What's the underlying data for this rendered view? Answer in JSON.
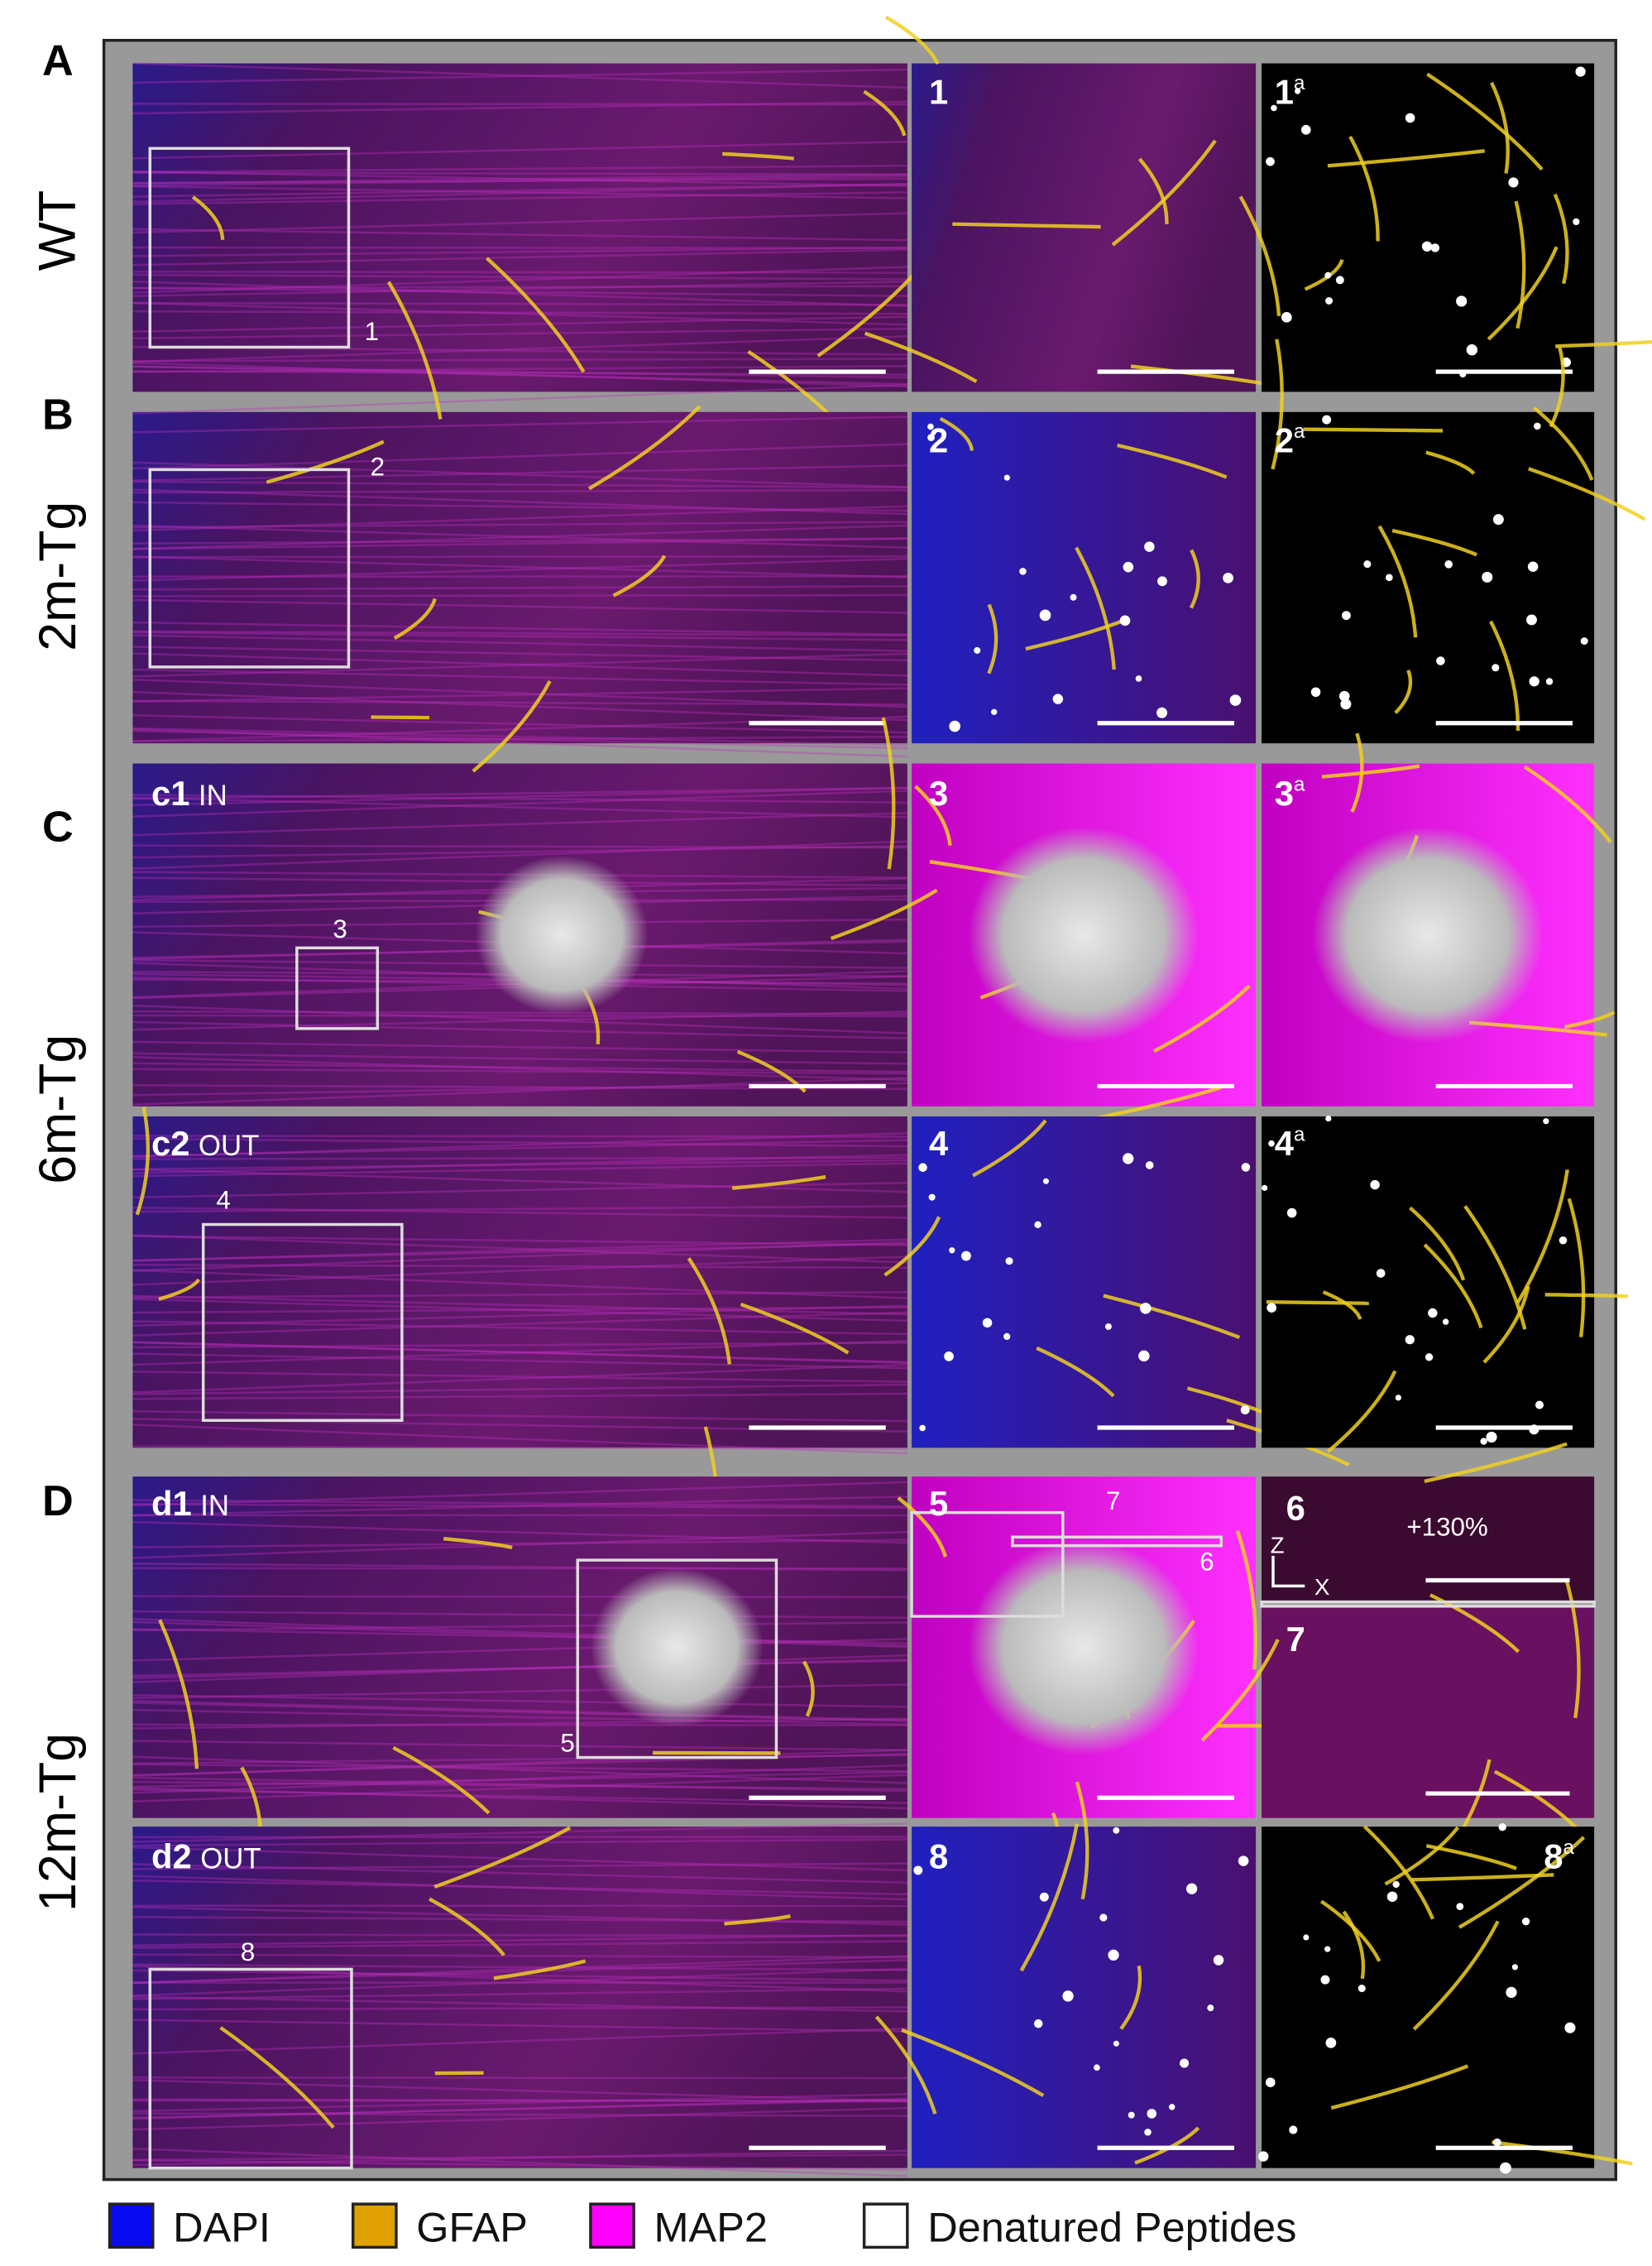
{
  "panel_letters": [
    "A",
    "B",
    "C",
    "D"
  ],
  "row_labels": [
    "WT",
    "2m-Tg",
    "6m-Tg",
    "12m-Tg"
  ],
  "panel_labels": [
    {
      "text": "1"
    },
    {
      "text": "1",
      "sup": "a"
    },
    {
      "text": "2"
    },
    {
      "text": "2",
      "sup": "a"
    },
    {
      "text": "c1",
      "suffix": "IN"
    },
    {
      "text": "3"
    },
    {
      "text": "3",
      "sup": "a"
    },
    {
      "text": "c2",
      "suffix": "OUT"
    },
    {
      "text": "4"
    },
    {
      "text": "4",
      "sup": "a"
    },
    {
      "text": "d1",
      "suffix": "IN"
    },
    {
      "text": "5"
    },
    {
      "text": "6"
    },
    {
      "text": "7"
    },
    {
      "text": "d2",
      "suffix": "OUT"
    },
    {
      "text": "8"
    },
    {
      "text": "8",
      "sup": "a"
    }
  ],
  "box_labels": [
    "1",
    "2",
    "3",
    "4",
    "5",
    "7",
    "6",
    "8"
  ],
  "annotation": "+130%",
  "axis_labels": [
    "Z",
    "X"
  ],
  "legend": [
    {
      "name": "DAPI",
      "color": "#0a0af0"
    },
    {
      "name": "GFAP",
      "color": "#e0a000"
    },
    {
      "name": "MAP2",
      "color": "#ff00ff"
    },
    {
      "name": "Denatured Peptides",
      "color": "#ffffff"
    }
  ]
}
